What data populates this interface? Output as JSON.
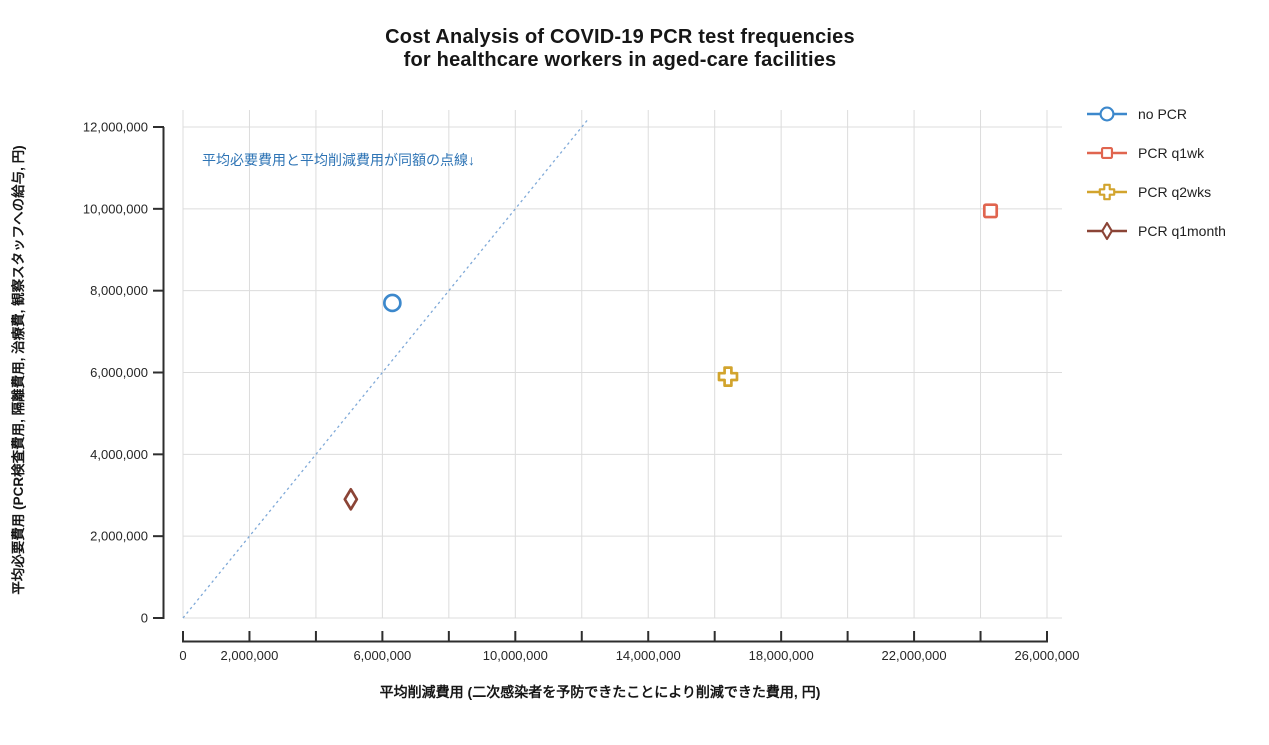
{
  "title": {
    "line1": "Cost Analysis of COVID-19 PCR test frequencies",
    "line2": "for healthcare workers in aged-care facilities"
  },
  "chart_data": {
    "type": "scatter",
    "title": "Cost Analysis of COVID-19 PCR test frequencies for healthcare workers in aged-care facilities",
    "xlabel": "平均削減費用 (二次感染者を予防できたことにより削減できた費用, 円)",
    "ylabel": "平均必要費用 (PCR検査費用, 隔離費用, 治療費, 観察スタッフへの給与, 円)",
    "xlim": [
      0,
      26000000
    ],
    "ylim": [
      0,
      12000000
    ],
    "x_tick_step": 2000000,
    "y_tick_step": 2000000,
    "x_labeled_ticks": [
      0,
      2000000,
      6000000,
      10000000,
      14000000,
      18000000,
      22000000,
      26000000
    ],
    "y_labeled_ticks": [
      0,
      2000000,
      4000000,
      6000000,
      8000000,
      10000000,
      12000000
    ],
    "grid": true,
    "legend_position": "top-right",
    "series": [
      {
        "name": "no PCR",
        "marker": "circle",
        "color": "#3C88CC",
        "points": [
          {
            "x": 6300000,
            "y": 7700000
          }
        ]
      },
      {
        "name": "PCR q1wk",
        "marker": "square",
        "color": "#E0654F",
        "points": [
          {
            "x": 24300000,
            "y": 9950000
          }
        ]
      },
      {
        "name": "PCR q2wks",
        "marker": "cross",
        "color": "#D2A42D",
        "points": [
          {
            "x": 16400000,
            "y": 5900000
          }
        ]
      },
      {
        "name": "PCR q1month",
        "marker": "diamond",
        "color": "#8B4436",
        "points": [
          {
            "x": 5050000,
            "y": 2900000
          }
        ]
      }
    ],
    "reference_line": {
      "description": "dashed line where average required cost equals average reduced cost (y = x)",
      "from": {
        "x": 0,
        "y": 0
      },
      "to": {
        "x": 12200000,
        "y": 12200000
      },
      "style": "dotted",
      "color": "#7FA9D8"
    },
    "annotation": {
      "text": "平均必要費用と平均削減費用が同額の点線↓",
      "color": "#2E74B5"
    }
  },
  "colors": {
    "axis": "#2e2e2e",
    "gridline": "#dcdcdc",
    "tick_label": "#262626",
    "title": "#161616"
  }
}
